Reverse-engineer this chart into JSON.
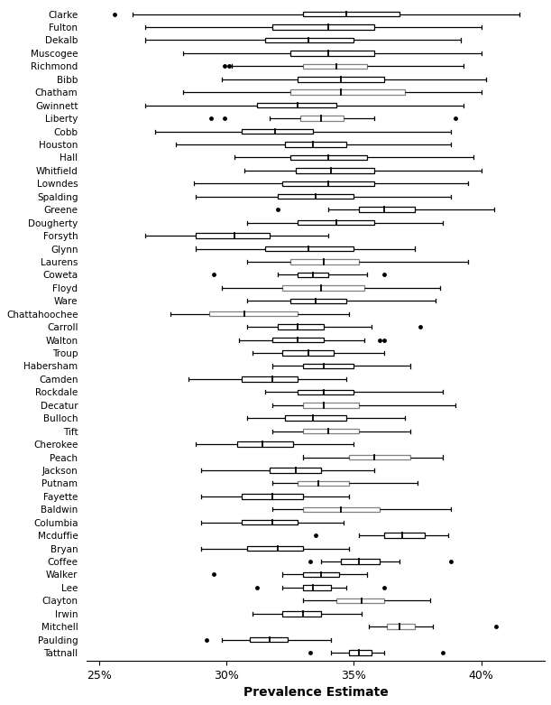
{
  "xlabel": "Prevalence Estimate",
  "xlim": [
    0.245,
    0.425
  ],
  "xticks": [
    0.25,
    0.3,
    0.35,
    0.4
  ],
  "xtick_labels": [
    "25%",
    "30%",
    "35%",
    "40%"
  ],
  "counties": [
    "Clarke",
    "Fulton",
    "Dekalb",
    "Muscogee",
    "Richmond",
    "Bibb",
    "Chatham",
    "Gwinnett",
    "Liberty",
    "Cobb",
    "Houston",
    "Hall",
    "Whitfield",
    "Lowndes",
    "Spalding",
    "Greene",
    "Dougherty",
    "Forsyth",
    "Glynn",
    "Laurens",
    "Coweta",
    "Floyd",
    "Ware",
    "Chattahoochee",
    "Carroll",
    "Walton",
    "Troup",
    "Habersham",
    "Camden",
    "Rockdale",
    "Decatur",
    "Bulloch",
    "Tift",
    "Cherokee",
    "Peach",
    "Jackson",
    "Putnam",
    "Fayette",
    "Baldwin",
    "Columbia",
    "Mcduffie",
    "Bryan",
    "Coffee",
    "Walker",
    "Lee",
    "Clayton",
    "Irwin",
    "Mitchell",
    "Paulding",
    "Tattnall"
  ],
  "box_data": [
    {
      "whislo": 0.263,
      "q1": 0.33,
      "med": 0.347,
      "q3": 0.368,
      "whishi": 0.415,
      "fliers": [
        0.256
      ],
      "edge": "black"
    },
    {
      "whislo": 0.268,
      "q1": 0.318,
      "med": 0.34,
      "q3": 0.358,
      "whishi": 0.4,
      "fliers": [],
      "edge": "black"
    },
    {
      "whislo": 0.268,
      "q1": 0.315,
      "med": 0.332,
      "q3": 0.35,
      "whishi": 0.392,
      "fliers": [],
      "edge": "black"
    },
    {
      "whislo": 0.283,
      "q1": 0.325,
      "med": 0.34,
      "q3": 0.358,
      "whishi": 0.4,
      "fliers": [],
      "edge": "black"
    },
    {
      "whislo": 0.302,
      "q1": 0.33,
      "med": 0.343,
      "q3": 0.355,
      "whishi": 0.393,
      "fliers": [
        0.299,
        0.301
      ],
      "edge": "gray"
    },
    {
      "whislo": 0.298,
      "q1": 0.328,
      "med": 0.345,
      "q3": 0.362,
      "whishi": 0.402,
      "fliers": [],
      "edge": "black"
    },
    {
      "whislo": 0.283,
      "q1": 0.325,
      "med": 0.345,
      "q3": 0.37,
      "whishi": 0.4,
      "fliers": [],
      "edge": "gray"
    },
    {
      "whislo": 0.268,
      "q1": 0.312,
      "med": 0.328,
      "q3": 0.343,
      "whishi": 0.393,
      "fliers": [],
      "edge": "black"
    },
    {
      "whislo": 0.317,
      "q1": 0.329,
      "med": 0.337,
      "q3": 0.346,
      "whishi": 0.358,
      "fliers": [
        0.294,
        0.299,
        0.39
      ],
      "edge": "gray"
    },
    {
      "whislo": 0.272,
      "q1": 0.306,
      "med": 0.319,
      "q3": 0.334,
      "whishi": 0.388,
      "fliers": [],
      "edge": "black"
    },
    {
      "whislo": 0.28,
      "q1": 0.323,
      "med": 0.334,
      "q3": 0.347,
      "whishi": 0.388,
      "fliers": [],
      "edge": "black"
    },
    {
      "whislo": 0.303,
      "q1": 0.325,
      "med": 0.34,
      "q3": 0.355,
      "whishi": 0.397,
      "fliers": [],
      "edge": "black"
    },
    {
      "whislo": 0.307,
      "q1": 0.327,
      "med": 0.341,
      "q3": 0.358,
      "whishi": 0.4,
      "fliers": [],
      "edge": "black"
    },
    {
      "whislo": 0.287,
      "q1": 0.322,
      "med": 0.34,
      "q3": 0.358,
      "whishi": 0.395,
      "fliers": [],
      "edge": "black"
    },
    {
      "whislo": 0.288,
      "q1": 0.32,
      "med": 0.335,
      "q3": 0.35,
      "whishi": 0.388,
      "fliers": [],
      "edge": "black"
    },
    {
      "whislo": 0.34,
      "q1": 0.352,
      "med": 0.362,
      "q3": 0.374,
      "whishi": 0.405,
      "fliers": [
        0.32
      ],
      "edge": "black"
    },
    {
      "whislo": 0.308,
      "q1": 0.328,
      "med": 0.343,
      "q3": 0.358,
      "whishi": 0.385,
      "fliers": [],
      "edge": "black"
    },
    {
      "whislo": 0.268,
      "q1": 0.288,
      "med": 0.303,
      "q3": 0.317,
      "whishi": 0.34,
      "fliers": [],
      "edge": "black"
    },
    {
      "whislo": 0.288,
      "q1": 0.315,
      "med": 0.332,
      "q3": 0.35,
      "whishi": 0.374,
      "fliers": [],
      "edge": "black"
    },
    {
      "whislo": 0.308,
      "q1": 0.325,
      "med": 0.338,
      "q3": 0.352,
      "whishi": 0.395,
      "fliers": [],
      "edge": "gray"
    },
    {
      "whislo": 0.32,
      "q1": 0.328,
      "med": 0.334,
      "q3": 0.34,
      "whishi": 0.355,
      "fliers": [
        0.295,
        0.362
      ],
      "edge": "black"
    },
    {
      "whislo": 0.298,
      "q1": 0.322,
      "med": 0.337,
      "q3": 0.354,
      "whishi": 0.384,
      "fliers": [],
      "edge": "gray"
    },
    {
      "whislo": 0.308,
      "q1": 0.325,
      "med": 0.335,
      "q3": 0.347,
      "whishi": 0.382,
      "fliers": [],
      "edge": "black"
    },
    {
      "whislo": 0.278,
      "q1": 0.293,
      "med": 0.307,
      "q3": 0.328,
      "whishi": 0.348,
      "fliers": [],
      "edge": "gray"
    },
    {
      "whislo": 0.308,
      "q1": 0.32,
      "med": 0.328,
      "q3": 0.338,
      "whishi": 0.357,
      "fliers": [
        0.376
      ],
      "edge": "black"
    },
    {
      "whislo": 0.305,
      "q1": 0.318,
      "med": 0.328,
      "q3": 0.338,
      "whishi": 0.354,
      "fliers": [
        0.36,
        0.362
      ],
      "edge": "black"
    },
    {
      "whislo": 0.31,
      "q1": 0.322,
      "med": 0.332,
      "q3": 0.342,
      "whishi": 0.362,
      "fliers": [],
      "edge": "black"
    },
    {
      "whislo": 0.318,
      "q1": 0.33,
      "med": 0.338,
      "q3": 0.35,
      "whishi": 0.372,
      "fliers": [],
      "edge": "black"
    },
    {
      "whislo": 0.285,
      "q1": 0.306,
      "med": 0.318,
      "q3": 0.328,
      "whishi": 0.347,
      "fliers": [],
      "edge": "black"
    },
    {
      "whislo": 0.315,
      "q1": 0.328,
      "med": 0.338,
      "q3": 0.35,
      "whishi": 0.385,
      "fliers": [],
      "edge": "black"
    },
    {
      "whislo": 0.318,
      "q1": 0.33,
      "med": 0.338,
      "q3": 0.352,
      "whishi": 0.39,
      "fliers": [],
      "edge": "gray"
    },
    {
      "whislo": 0.308,
      "q1": 0.323,
      "med": 0.334,
      "q3": 0.347,
      "whishi": 0.37,
      "fliers": [],
      "edge": "black"
    },
    {
      "whislo": 0.318,
      "q1": 0.33,
      "med": 0.34,
      "q3": 0.352,
      "whishi": 0.372,
      "fliers": [],
      "edge": "gray"
    },
    {
      "whislo": 0.288,
      "q1": 0.304,
      "med": 0.314,
      "q3": 0.326,
      "whishi": 0.35,
      "fliers": [],
      "edge": "black"
    },
    {
      "whislo": 0.33,
      "q1": 0.348,
      "med": 0.358,
      "q3": 0.372,
      "whishi": 0.385,
      "fliers": [],
      "edge": "gray"
    },
    {
      "whislo": 0.29,
      "q1": 0.317,
      "med": 0.327,
      "q3": 0.337,
      "whishi": 0.358,
      "fliers": [],
      "edge": "black"
    },
    {
      "whislo": 0.318,
      "q1": 0.328,
      "med": 0.336,
      "q3": 0.348,
      "whishi": 0.375,
      "fliers": [],
      "edge": "gray"
    },
    {
      "whislo": 0.29,
      "q1": 0.306,
      "med": 0.318,
      "q3": 0.33,
      "whishi": 0.348,
      "fliers": [],
      "edge": "black"
    },
    {
      "whislo": 0.318,
      "q1": 0.33,
      "med": 0.345,
      "q3": 0.36,
      "whishi": 0.388,
      "fliers": [],
      "edge": "gray"
    },
    {
      "whislo": 0.29,
      "q1": 0.306,
      "med": 0.318,
      "q3": 0.328,
      "whishi": 0.346,
      "fliers": [],
      "edge": "black"
    },
    {
      "whislo": 0.352,
      "q1": 0.362,
      "med": 0.369,
      "q3": 0.378,
      "whishi": 0.387,
      "fliers": [
        0.335
      ],
      "edge": "black"
    },
    {
      "whislo": 0.29,
      "q1": 0.308,
      "med": 0.32,
      "q3": 0.33,
      "whishi": 0.348,
      "fliers": [],
      "edge": "black"
    },
    {
      "whislo": 0.337,
      "q1": 0.345,
      "med": 0.352,
      "q3": 0.36,
      "whishi": 0.368,
      "fliers": [
        0.333,
        0.388
      ],
      "edge": "black"
    },
    {
      "whislo": 0.322,
      "q1": 0.33,
      "med": 0.337,
      "q3": 0.344,
      "whishi": 0.355,
      "fliers": [
        0.295
      ],
      "edge": "black"
    },
    {
      "whislo": 0.322,
      "q1": 0.33,
      "med": 0.334,
      "q3": 0.341,
      "whishi": 0.347,
      "fliers": [
        0.312,
        0.362
      ],
      "edge": "black"
    },
    {
      "whislo": 0.33,
      "q1": 0.343,
      "med": 0.353,
      "q3": 0.362,
      "whishi": 0.38,
      "fliers": [],
      "edge": "gray"
    },
    {
      "whislo": 0.31,
      "q1": 0.322,
      "med": 0.33,
      "q3": 0.337,
      "whishi": 0.353,
      "fliers": [],
      "edge": "black"
    },
    {
      "whislo": 0.356,
      "q1": 0.363,
      "med": 0.368,
      "q3": 0.374,
      "whishi": 0.381,
      "fliers": [
        0.406
      ],
      "edge": "gray"
    },
    {
      "whislo": 0.298,
      "q1": 0.309,
      "med": 0.317,
      "q3": 0.324,
      "whishi": 0.341,
      "fliers": [
        0.292
      ],
      "edge": "black"
    },
    {
      "whislo": 0.341,
      "q1": 0.348,
      "med": 0.352,
      "q3": 0.357,
      "whishi": 0.362,
      "fliers": [
        0.333,
        0.385
      ],
      "edge": "black"
    }
  ],
  "box_color": "white",
  "figsize": [
    6.11,
    7.81
  ],
  "dpi": 100
}
